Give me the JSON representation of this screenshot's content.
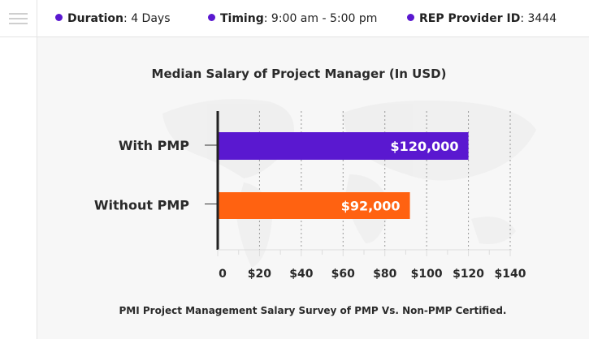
{
  "header": {
    "items": [
      {
        "label": "Duration",
        "value": "4 Days"
      },
      {
        "label": "Timing",
        "value": "9:00 am - 5:00 pm"
      },
      {
        "label": "REP Provider ID",
        "value": "3444"
      }
    ],
    "separator": ":"
  },
  "colors": {
    "accent": "#5a18d0",
    "with_pmp": "#5a18d0",
    "without_pmp": "#ff6211"
  },
  "chart_data": {
    "type": "bar",
    "orientation": "horizontal",
    "title": "Median Salary of Project Manager (In USD)",
    "caption": "PMI Project Management Salary Survey of PMP Vs. Non-PMP Certified.",
    "categories": [
      "With PMP",
      "Without PMP"
    ],
    "values": [
      120,
      92
    ],
    "data_labels": [
      "$120,000",
      "$92,000"
    ],
    "unit": "thousand USD",
    "xlim": [
      0,
      140
    ],
    "xticks": [
      0,
      20,
      40,
      60,
      80,
      100,
      120,
      140
    ],
    "xtick_labels": [
      "0",
      "$20",
      "$40",
      "$60",
      "$80",
      "$100",
      "$120",
      "$140"
    ],
    "grid": true
  }
}
